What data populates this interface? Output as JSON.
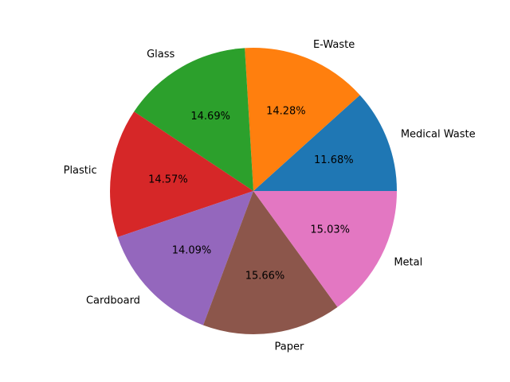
{
  "chart_data": {
    "type": "pie",
    "title": "",
    "start_angle_deg": 0,
    "direction": "counterclockwise",
    "slices": [
      {
        "label": "Medical Waste",
        "value": 11.68,
        "pct_text": "11.68%",
        "color": "#1f77b4"
      },
      {
        "label": "E-Waste",
        "value": 14.28,
        "pct_text": "14.28%",
        "color": "#ff7f0e"
      },
      {
        "label": "Glass",
        "value": 14.69,
        "pct_text": "14.69%",
        "color": "#2ca02c"
      },
      {
        "label": "Plastic",
        "value": 14.57,
        "pct_text": "14.57%",
        "color": "#d62728"
      },
      {
        "label": "Cardboard",
        "value": 14.09,
        "pct_text": "14.09%",
        "color": "#9467bd"
      },
      {
        "label": "Paper",
        "value": 15.66,
        "pct_text": "15.66%",
        "color": "#8c564b"
      },
      {
        "label": "Metal",
        "value": 15.03,
        "pct_text": "15.03%",
        "color": "#e377c2"
      }
    ]
  }
}
